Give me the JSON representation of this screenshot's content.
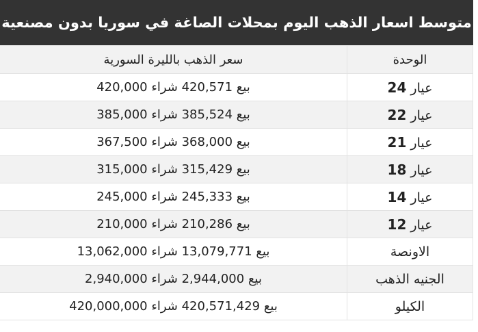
{
  "title": "متوسط اسعار الذهب اليوم بمحلات الصاغة في سوريا بدون مصنعية",
  "table": {
    "headers": {
      "unit": "الوحدة",
      "price": "سعر الذهب بالليرة السورية"
    },
    "labels": {
      "sell": "بيع",
      "buy": "شراء"
    },
    "rows": [
      {
        "unit_prefix": "عيار",
        "unit_num": "24",
        "sell": "420,571",
        "buy": "420,000"
      },
      {
        "unit_prefix": "عيار",
        "unit_num": "22",
        "sell": "385,524",
        "buy": "385,000"
      },
      {
        "unit_prefix": "عيار",
        "unit_num": "21",
        "sell": "368,000",
        "buy": "367,500"
      },
      {
        "unit_prefix": "عيار",
        "unit_num": "18",
        "sell": "315,429",
        "buy": "315,000"
      },
      {
        "unit_prefix": "عيار",
        "unit_num": "14",
        "sell": "245,333",
        "buy": "245,000"
      },
      {
        "unit_prefix": "عيار",
        "unit_num": "12",
        "sell": "210,286",
        "buy": "210,000"
      },
      {
        "unit_prefix": "الاونصة",
        "unit_num": "",
        "sell": "13,079,771",
        "buy": "13,062,000"
      },
      {
        "unit_prefix": "الجنيه الذهب",
        "unit_num": "",
        "sell": "2,944,000",
        "buy": "2,940,000"
      },
      {
        "unit_prefix": "الكيلو",
        "unit_num": "",
        "sell": "420,571,429",
        "buy": "420,000,000"
      }
    ]
  }
}
